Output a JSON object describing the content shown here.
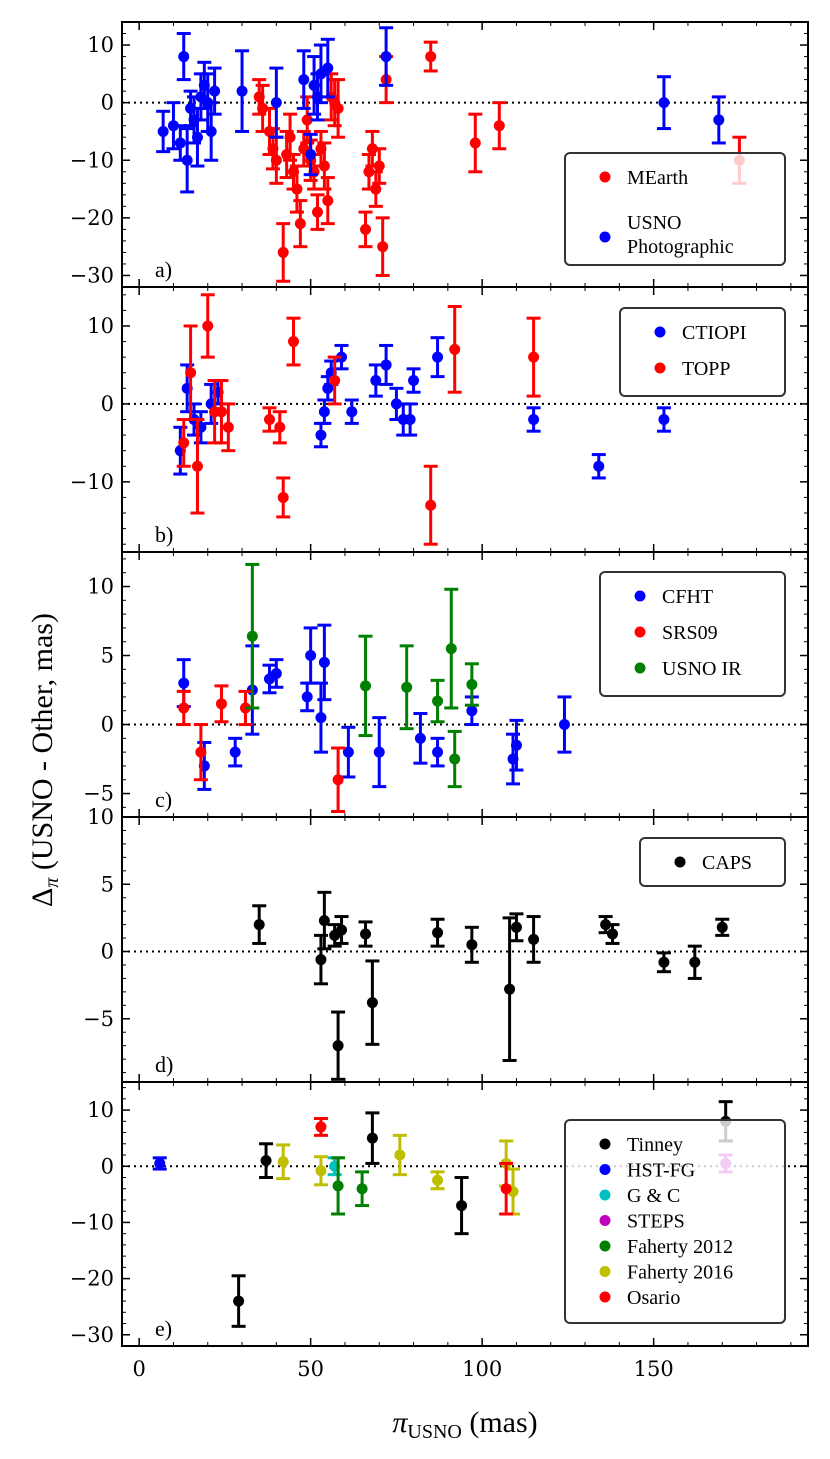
{
  "axis_labels": {
    "xlabel_main": "π",
    "xlabel_sub": "USNO",
    "xlabel_unit": " (mas)",
    "ylabel_main": "Δ",
    "ylabel_sub": "π",
    "ylabel_unit": " (USNO - Other, mas)"
  },
  "chart_data": [
    {
      "type": "scatter",
      "panel_label": "a)",
      "xlim": [
        -5,
        195
      ],
      "ylim": [
        -32,
        14
      ],
      "yticks": [
        10,
        0,
        -10,
        -20,
        -30
      ],
      "reference_line": 0,
      "legend_position": "lower-right",
      "series": [
        {
          "name": "MEarth",
          "color": "#ff0000",
          "points": [
            [
              35,
              1,
              3
            ],
            [
              36,
              -1,
              4
            ],
            [
              38,
              -5,
              4
            ],
            [
              39,
              -8,
              3.5
            ],
            [
              40,
              -10,
              4
            ],
            [
              42,
              -26,
              5
            ],
            [
              43,
              -9,
              4
            ],
            [
              44,
              -6,
              4
            ],
            [
              45,
              -12,
              3
            ],
            [
              46,
              -15,
              4
            ],
            [
              47,
              -21,
              4
            ],
            [
              48,
              -8,
              3
            ],
            [
              49,
              -3,
              4
            ],
            [
              50,
              -10,
              3.5
            ],
            [
              51,
              -12,
              3
            ],
            [
              52,
              -19,
              3
            ],
            [
              53,
              -8,
              3
            ],
            [
              54,
              -11,
              4
            ],
            [
              55,
              -17,
              4
            ],
            [
              56,
              1,
              4
            ],
            [
              57,
              0,
              4
            ],
            [
              58,
              -1,
              5
            ],
            [
              66,
              -22,
              3
            ],
            [
              67,
              -12,
              3
            ],
            [
              68,
              -8,
              3
            ],
            [
              69,
              -15,
              3
            ],
            [
              70,
              -11,
              3
            ],
            [
              71,
              -25,
              5
            ],
            [
              72,
              4,
              4
            ],
            [
              85,
              8,
              2.5
            ],
            [
              98,
              -7,
              5
            ],
            [
              105,
              -4,
              4
            ],
            [
              175,
              -10,
              4
            ]
          ]
        },
        {
          "name": "USNO Photographic",
          "color": "#0000ff",
          "points": [
            [
              7,
              -5,
              3.5
            ],
            [
              10,
              -4,
              4
            ],
            [
              12,
              -7,
              3
            ],
            [
              13,
              8,
              4
            ],
            [
              14,
              -10,
              5.5
            ],
            [
              15,
              -1,
              3
            ],
            [
              16,
              -3,
              4
            ],
            [
              17,
              -6,
              5
            ],
            [
              18,
              1,
              4
            ],
            [
              19,
              3,
              4
            ],
            [
              20,
              0,
              5
            ],
            [
              21,
              -5,
              5
            ],
            [
              22,
              2,
              4
            ],
            [
              30,
              2,
              7
            ],
            [
              40,
              0,
              6
            ],
            [
              48,
              4,
              5
            ],
            [
              50,
              -9,
              3.5
            ],
            [
              51,
              3,
              5
            ],
            [
              52,
              1,
              4
            ],
            [
              53,
              5,
              5
            ],
            [
              55,
              6,
              5
            ],
            [
              72,
              8,
              5
            ],
            [
              153,
              0,
              4.5
            ],
            [
              169,
              -3,
              4
            ]
          ]
        }
      ]
    },
    {
      "type": "scatter",
      "panel_label": "b)",
      "xlim": [
        -5,
        195
      ],
      "ylim": [
        -19,
        15
      ],
      "yticks": [
        10,
        0,
        -10
      ],
      "reference_line": 0,
      "legend_position": "upper-right",
      "series": [
        {
          "name": "CTIOPI",
          "color": "#0000ff",
          "points": [
            [
              12,
              -6,
              3
            ],
            [
              14,
              2,
              3
            ],
            [
              16,
              -2,
              2
            ],
            [
              18,
              -3,
              2
            ],
            [
              21,
              0,
              2.5
            ],
            [
              23,
              1.5,
              1.5
            ],
            [
              53,
              -4,
              1.5
            ],
            [
              54,
              -1,
              1.5
            ],
            [
              55,
              2,
              1.5
            ],
            [
              56,
              4,
              1.5
            ],
            [
              59,
              6,
              1.5
            ],
            [
              62,
              -1,
              1.5
            ],
            [
              69,
              3,
              2
            ],
            [
              72,
              5,
              2.5
            ],
            [
              75,
              0,
              2
            ],
            [
              77,
              -2,
              2
            ],
            [
              79,
              -2,
              2
            ],
            [
              80,
              3,
              1.5
            ],
            [
              87,
              6,
              2.5
            ],
            [
              115,
              -2,
              1.5
            ],
            [
              134,
              -8,
              1.5
            ],
            [
              153,
              -2,
              1.5
            ]
          ]
        },
        {
          "name": "TOPP",
          "color": "#ff0000",
          "points": [
            [
              13,
              -5,
              3
            ],
            [
              15,
              4,
              6
            ],
            [
              17,
              -8,
              6
            ],
            [
              20,
              10,
              4
            ],
            [
              22,
              -1,
              4
            ],
            [
              24,
              -1,
              4
            ],
            [
              26,
              -3,
              3
            ],
            [
              38,
              -2,
              1.5
            ],
            [
              41,
              -3,
              2
            ],
            [
              42,
              -12,
              2.5
            ],
            [
              45,
              8,
              3
            ],
            [
              57,
              3,
              3
            ],
            [
              85,
              -13,
              5
            ],
            [
              92,
              7,
              5.5
            ],
            [
              115,
              6,
              5
            ]
          ]
        }
      ]
    },
    {
      "type": "scatter",
      "panel_label": "c)",
      "xlim": [
        -5,
        195
      ],
      "ylim": [
        -6.7,
        12.5
      ],
      "yticks": [
        10,
        5,
        0,
        -5
      ],
      "reference_line": 0,
      "legend_position": "upper-right",
      "series": [
        {
          "name": "CFHT",
          "color": "#0000ff",
          "points": [
            [
              13,
              3,
              1.7
            ],
            [
              19,
              -3,
              1.7
            ],
            [
              28,
              -2,
              1
            ],
            [
              33,
              2.5,
              3.2
            ],
            [
              38,
              3.3,
              1
            ],
            [
              40,
              3.7,
              1
            ],
            [
              49,
              2,
              1
            ],
            [
              50,
              5,
              2
            ],
            [
              53,
              0.5,
              2.5
            ],
            [
              54,
              4.5,
              2.7
            ],
            [
              61,
              -2,
              1.8
            ],
            [
              70,
              -2,
              2.5
            ],
            [
              82,
              -1,
              1.8
            ],
            [
              87,
              -2,
              1
            ],
            [
              97,
              1,
              1
            ],
            [
              109,
              -2.5,
              1.8
            ],
            [
              110,
              -1.5,
              1.8
            ],
            [
              124,
              0,
              2
            ]
          ]
        },
        {
          "name": "SRS09",
          "color": "#ff0000",
          "points": [
            [
              13,
              1.2,
              1.2
            ],
            [
              18,
              -2,
              2
            ],
            [
              24,
              1.5,
              1.3
            ],
            [
              31,
              1.2,
              1.2
            ],
            [
              58,
              -4,
              2.3
            ]
          ]
        },
        {
          "name": "USNO IR",
          "color": "#008000",
          "points": [
            [
              33,
              6.4,
              5.2
            ],
            [
              66,
              2.8,
              3.6
            ],
            [
              78,
              2.7,
              3
            ],
            [
              87,
              1.7,
              1.5
            ],
            [
              91,
              5.5,
              4.3
            ],
            [
              92,
              -2.5,
              2
            ],
            [
              97,
              2.9,
              1.5
            ]
          ]
        }
      ]
    },
    {
      "type": "scatter",
      "panel_label": "d)",
      "xlim": [
        -5,
        195
      ],
      "ylim": [
        -9.7,
        10
      ],
      "yticks": [
        10,
        5,
        0,
        -5
      ],
      "reference_line": 0,
      "legend_position": "upper-right",
      "series": [
        {
          "name": "CAPS",
          "color": "#000000",
          "points": [
            [
              35,
              2,
              1.4
            ],
            [
              53,
              -0.6,
              1.8
            ],
            [
              54,
              2.3,
              2.1
            ],
            [
              57,
              1.2,
              0.8
            ],
            [
              58,
              -7,
              2.5
            ],
            [
              59,
              1.6,
              1
            ],
            [
              66,
              1.3,
              0.9
            ],
            [
              68,
              -3.8,
              3.1
            ],
            [
              87,
              1.4,
              1
            ],
            [
              97,
              0.5,
              1.3
            ],
            [
              108,
              -2.8,
              5.3
            ],
            [
              110,
              1.8,
              1
            ],
            [
              115,
              0.9,
              1.7
            ],
            [
              136,
              2,
              0.6
            ],
            [
              138,
              1.3,
              0.7
            ],
            [
              153,
              -0.8,
              0.7
            ],
            [
              162,
              -0.8,
              1.2
            ],
            [
              170,
              1.8,
              0.6
            ]
          ]
        }
      ]
    },
    {
      "type": "scatter",
      "panel_label": "e)",
      "xlim": [
        -5,
        195
      ],
      "ylim": [
        -32,
        15
      ],
      "yticks": [
        10,
        0,
        -10,
        -20,
        -30
      ],
      "reference_line": 0,
      "legend_position": "lower-right",
      "series": [
        {
          "name": "Tinney",
          "color": "#000000",
          "points": [
            [
              29,
              -24,
              4.5
            ],
            [
              37,
              1,
              3
            ],
            [
              68,
              5,
              4.5
            ],
            [
              94,
              -7,
              5
            ],
            [
              171,
              8,
              3.5
            ]
          ]
        },
        {
          "name": "HST-FG",
          "color": "#0000ff",
          "points": [
            [
              6,
              0.5,
              1
            ]
          ]
        },
        {
          "name": "G & C",
          "color": "#00bfbf",
          "points": [
            [
              57,
              0,
              1.5
            ]
          ]
        },
        {
          "name": "STEPS",
          "color": "#bf00bf",
          "points": [
            [
              171,
              0.5,
              1.5
            ]
          ]
        },
        {
          "name": "Faherty 2012",
          "color": "#008000",
          "points": [
            [
              58,
              -3.5,
              5
            ],
            [
              65,
              -4,
              3
            ]
          ]
        },
        {
          "name": "Faherty 2016",
          "color": "#bfbf00",
          "points": [
            [
              42,
              0.8,
              3
            ],
            [
              53,
              -0.8,
              2.5
            ],
            [
              76,
              2,
              3.5
            ],
            [
              87,
              -2.5,
              1.5
            ],
            [
              107,
              0.5,
              4
            ],
            [
              109,
              -4.5,
              4
            ]
          ]
        },
        {
          "name": "Osario",
          "color": "#ff0000",
          "points": [
            [
              53,
              7,
              1.5
            ],
            [
              107,
              -4,
              4.5
            ]
          ]
        }
      ]
    }
  ],
  "xaxis": {
    "ticks": [
      0,
      50,
      100,
      150
    ]
  }
}
